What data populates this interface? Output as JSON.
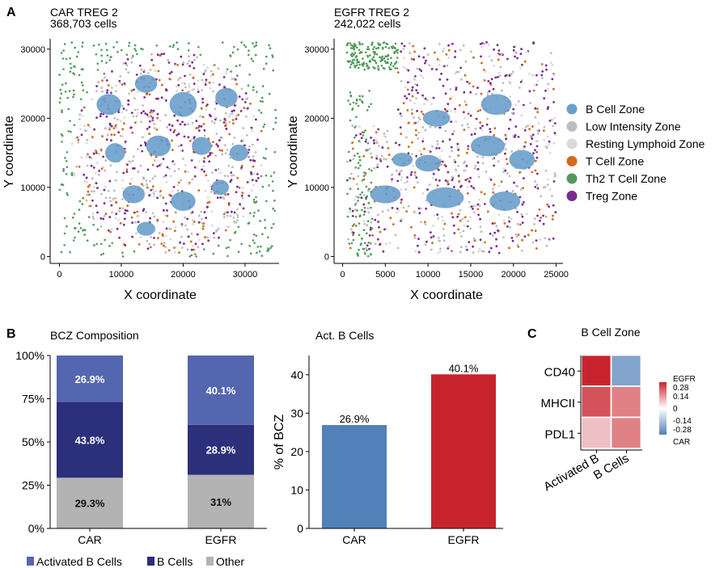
{
  "panel_labels": {
    "a": "A",
    "b": "B",
    "c": "C"
  },
  "colors": {
    "b_cell_zone": "#6a9fcb",
    "low_intensity_zone": "#bdbdbd",
    "resting_lymphoid_zone": "#d9d9d9",
    "t_cell_zone": "#d2691e",
    "th2_t_cell_zone": "#4f9a5a",
    "treg_zone": "#7b2a8e",
    "activated_b": "#5566b0",
    "b_cells": "#2c2f7a",
    "other": "#b3b3b3",
    "car_bar": "#5280b8",
    "egfr_bar": "#c8232c"
  },
  "chart_data": [
    {
      "type": "scatter",
      "title": "CAR TREG 2",
      "subtitle": "368,703 cells",
      "xlabel": "X coordinate",
      "ylabel": "Y coordinate",
      "xticks": [
        "0",
        "10000",
        "20000",
        "30000"
      ],
      "yticks": [
        "0",
        "10000",
        "20000",
        "30000"
      ],
      "xlim": [
        -1500,
        35500
      ],
      "ylim": [
        -1000,
        31500
      ]
    },
    {
      "type": "scatter",
      "title": "EGFR TREG 2",
      "subtitle": "242,022 cells",
      "xlabel": "X coordinate",
      "ylabel": "Y coordinate",
      "xticks": [
        "0",
        "5000",
        "10000",
        "15000",
        "20000",
        "25000"
      ],
      "yticks": [
        "0",
        "10000",
        "20000",
        "30000"
      ],
      "xlim": [
        -1000,
        25800
      ],
      "ylim": [
        -1000,
        31500
      ],
      "legend": {
        "placement": "right",
        "entries": [
          "B Cell Zone",
          "Low Intensity Zone",
          "Resting Lymphoid Zone",
          "T Cell Zone",
          "Th2 T Cell Zone",
          "Treg Zone"
        ]
      }
    },
    {
      "type": "bar",
      "stacked": true,
      "title": "BCZ Composition",
      "categories": [
        "CAR",
        "EGFR"
      ],
      "yticks": [
        "0%",
        "25%",
        "50%",
        "75%",
        "100%"
      ],
      "ylim": [
        0,
        100
      ],
      "series": [
        {
          "name": "Other",
          "values": [
            29.3,
            31
          ],
          "labels": [
            "29.3%",
            "31%"
          ]
        },
        {
          "name": "B Cells",
          "values": [
            43.8,
            28.9
          ],
          "labels": [
            "43.8%",
            "28.9%"
          ]
        },
        {
          "name": "Activated B Cells",
          "values": [
            26.9,
            40.1
          ],
          "labels": [
            "26.9%",
            "40.1%"
          ]
        }
      ],
      "legend": {
        "placement": "bottom",
        "entries": [
          "Activated B Cells",
          "B Cells",
          "Other"
        ]
      }
    },
    {
      "type": "bar",
      "title": "Act. B Cells",
      "ylabel": "% of BCZ",
      "categories": [
        "CAR",
        "EGFR"
      ],
      "values": [
        26.9,
        40.1
      ],
      "labels": [
        "26.9%",
        "40.1%"
      ],
      "yticks": [
        "0",
        "10",
        "20",
        "30",
        "40"
      ],
      "ylim": [
        0,
        45
      ]
    },
    {
      "type": "heatmap",
      "title": "B Cell Zone",
      "rows": [
        "CD40",
        "MHCII",
        "PDL1"
      ],
      "columns": [
        "Activated B",
        "B Cells"
      ],
      "values": [
        [
          0.28,
          -0.2
        ],
        [
          0.22,
          0.16
        ],
        [
          0.08,
          0.16
        ]
      ],
      "colorbar": {
        "ticks": [
          "0.28",
          "0.14",
          "0",
          "-0.14",
          "-0.28"
        ],
        "top_label": "EGFR",
        "bottom_label": "CAR",
        "range": [
          -0.28,
          0.28
        ]
      }
    }
  ]
}
